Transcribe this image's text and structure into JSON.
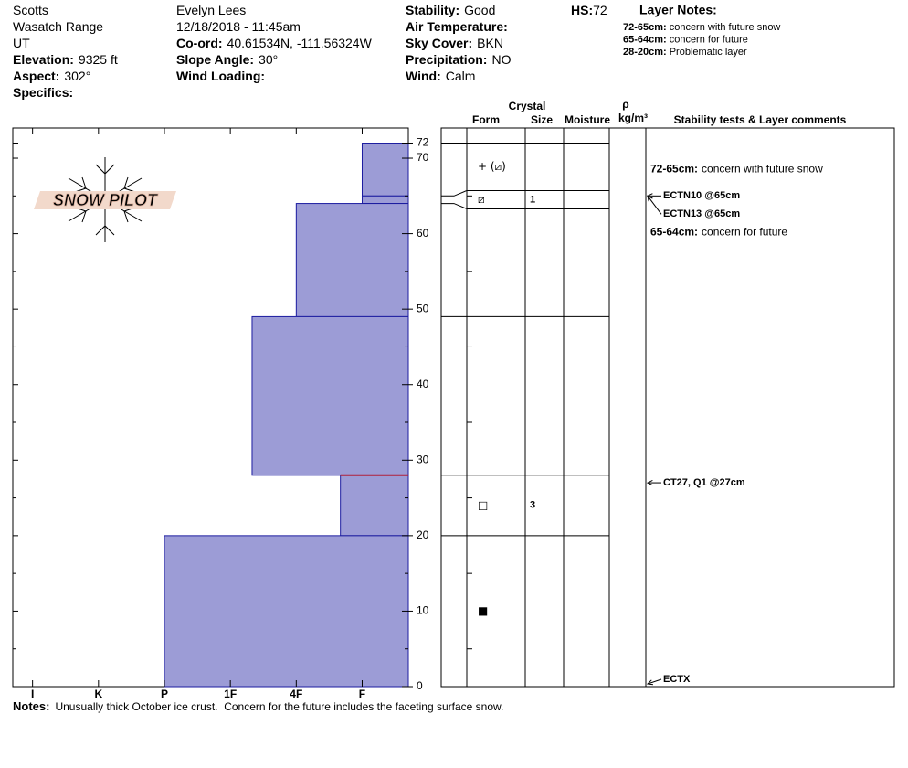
{
  "header": {
    "columns": [
      [
        {
          "value": "Scotts"
        },
        {
          "value": "Wasatch Range"
        },
        {
          "value": "UT"
        },
        {
          "label": "Elevation:",
          "value": "9325 ft"
        },
        {
          "label": "Aspect:",
          "value": "302°"
        },
        {
          "label": "Specifics:"
        }
      ],
      [
        {
          "value": "Evelyn Lees"
        },
        {
          "value": "12/18/2018 - 11:45am"
        },
        {
          "label": "Co-ord:",
          "value": "40.61534N, -111.56324W"
        },
        {
          "label": "Slope Angle:",
          "value": "30°"
        },
        {
          "label": "Wind Loading:"
        }
      ],
      [
        {
          "label": "Stability:",
          "value": "Good"
        },
        {
          "label": "Air Temperature:"
        },
        {
          "label": "Sky Cover:",
          "value": "BKN"
        },
        {
          "label": "Precipitation:",
          "value": "NO"
        },
        {
          "label": "Wind:",
          "value": "Calm"
        }
      ]
    ],
    "hs": {
      "label": "HS:",
      "value": 72
    },
    "layer_notes_title": "Layer Notes:",
    "layer_notes": [
      {
        "label": "72-65cm:",
        "text": "concern with future snow"
      },
      {
        "label": "65-64cm:",
        "text": "concern for future"
      },
      {
        "label": "28-20cm:",
        "text": "Problematic layer"
      }
    ]
  },
  "logo": "SNOW PILOT",
  "chart_data": {
    "type": "snow-profile",
    "xlim": [
      6.3,
      0.3
    ],
    "xticks": [
      {
        "value": 6,
        "label": "I"
      },
      {
        "value": 5,
        "label": "K"
      },
      {
        "value": 4,
        "label": "P"
      },
      {
        "value": 3,
        "label": "1F"
      },
      {
        "value": 2,
        "label": "4F"
      },
      {
        "value": 1,
        "label": "F"
      }
    ],
    "ylim": [
      0,
      74
    ],
    "yticks": [
      0,
      10,
      20,
      30,
      40,
      50,
      60,
      70,
      72
    ],
    "minor_yticks": [
      5,
      15,
      25,
      35,
      45,
      55,
      65
    ],
    "bar_color": "#9c9cd6",
    "bar_edge": "#1c1ca0",
    "layers": [
      {
        "top": 72,
        "bottom": 65,
        "hardness": 1,
        "form": "+ (⧄)"
      },
      {
        "top": 65,
        "bottom": 64,
        "hardness": 1,
        "form": "⧄",
        "size": 1
      },
      {
        "top": 64,
        "bottom": 49,
        "hardness": 2
      },
      {
        "top": 49,
        "bottom": 28,
        "hardness": 2.67
      },
      {
        "top": 28,
        "bottom": 20,
        "hardness": 1.33,
        "form": "□",
        "size": 3
      },
      {
        "top": 20,
        "bottom": 0,
        "hardness": 4,
        "form": "■"
      }
    ],
    "critical_layer": {
      "depth": 28,
      "color": "#b0203c"
    }
  },
  "table": {
    "headers": {
      "crystal": "Crystal",
      "form": "Form",
      "size": "Size",
      "moisture": "Moisture",
      "density_symbol": "ρ",
      "density_unit": "kg/m³",
      "comments": "Stability tests & Layer comments"
    },
    "tests": [
      {
        "label": "ECTN10 @65cm",
        "depth": 65
      },
      {
        "label": "ECTN13 @65cm",
        "depth": 65
      },
      {
        "label": "CT27, Q1 @27cm",
        "depth": 27
      },
      {
        "label": "ECTX",
        "depth": 0
      }
    ],
    "comments": [
      {
        "label": "72-65cm:",
        "text": "concern with future snow",
        "top": 72,
        "bottom": 65
      },
      {
        "label": "65-64cm:",
        "text": "concern for future",
        "top": 65,
        "bottom": 64
      }
    ]
  },
  "notes": {
    "label": "Notes:",
    "text": "Unusually thick October ice crust.  Concern for the future includes the faceting surface snow."
  }
}
